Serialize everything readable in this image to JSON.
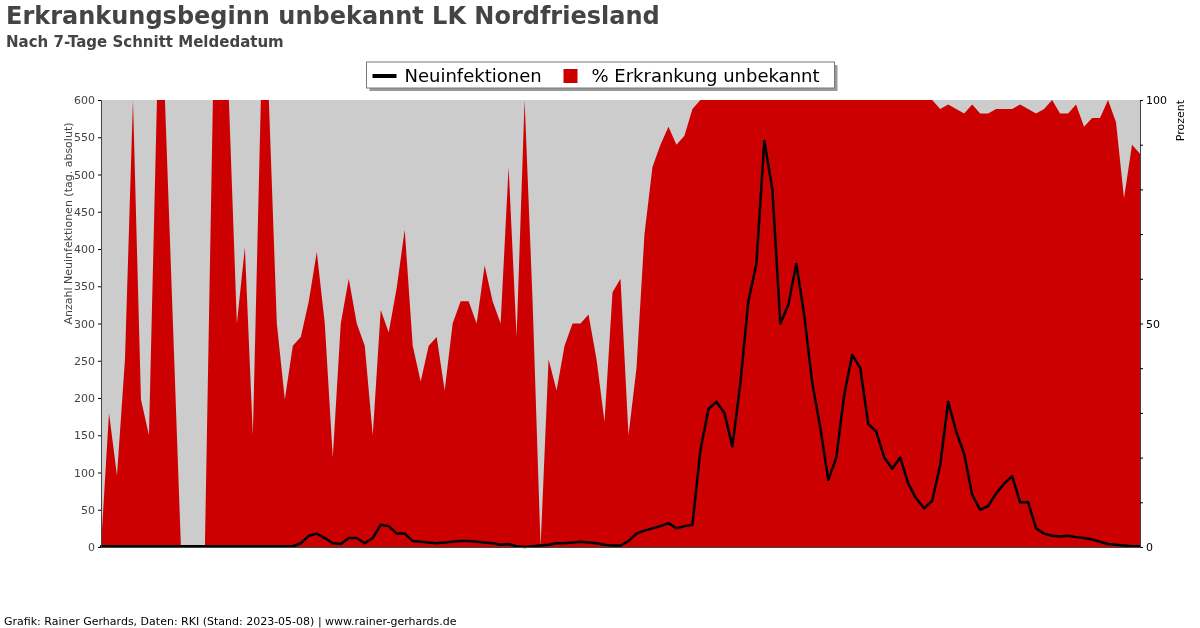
{
  "chart_data": {
    "type": "line",
    "title": "Erkrankungsbeginn unbekannt LK Nordfriesland",
    "subtitle": "Nach 7-Tage Schnitt Meldedatum",
    "ylabel": "Anzahl Neuinfektionen (tag. absolut)",
    "y2label": "Prozent",
    "annotations": [
      "Grafik: Rainer Gerhards, Daten: RKI (Stand: 2023-05-08) | www.rainer-gerhards.de"
    ],
    "categories": [
      null,
      null,
      null,
      null,
      null,
      null,
      null,
      null,
      null,
      null,
      null,
      null,
      null,
      null,
      null,
      null,
      null,
      null,
      null,
      null,
      null,
      null,
      null,
      null,
      null,
      null,
      null,
      null,
      null,
      null,
      null,
      null,
      null,
      null,
      null,
      null,
      null,
      null,
      null,
      null,
      null,
      null,
      null,
      null,
      null,
      null,
      null,
      null,
      null,
      null,
      null,
      null,
      null,
      null,
      null,
      null,
      null,
      null,
      null,
      null,
      null,
      null,
      null,
      null,
      null,
      null,
      null,
      null,
      null,
      null,
      null,
      null,
      null,
      null,
      null,
      null,
      null,
      null,
      null,
      null,
      null,
      null,
      null,
      null,
      null,
      null,
      null,
      null,
      null,
      null,
      null,
      null,
      null,
      null,
      null,
      null,
      null,
      null,
      null,
      null,
      null,
      null,
      null,
      null,
      null,
      null,
      null,
      null,
      null,
      null,
      null,
      null,
      null,
      null,
      null,
      null,
      null,
      null,
      null,
      null,
      null,
      null,
      null,
      null,
      null,
      null,
      null,
      null,
      null,
      null,
      null
    ],
    "series": [
      {
        "name": "Neuinfektionen",
        "type": "line",
        "color": "#000000",
        "values": [
          1,
          1,
          1,
          1,
          1,
          1,
          1,
          1,
          1,
          1,
          1,
          1,
          1,
          1,
          1,
          1,
          1,
          1,
          1,
          1,
          1,
          1,
          1,
          1,
          1,
          5,
          15,
          18,
          12,
          5,
          4,
          12,
          12,
          5,
          12,
          30,
          28,
          18,
          18,
          8,
          7,
          6,
          5,
          6,
          7,
          8,
          8,
          7,
          6,
          5,
          3,
          4,
          1,
          0,
          1,
          2,
          3,
          5,
          5,
          6,
          7,
          6,
          5,
          3,
          2,
          2,
          8,
          18,
          22,
          25,
          28,
          32,
          25,
          28,
          30,
          130,
          185,
          195,
          180,
          135,
          220,
          330,
          380,
          545,
          480,
          300,
          325,
          380,
          310,
          220,
          160,
          90,
          120,
          205,
          258,
          240,
          165,
          155,
          120,
          105,
          120,
          85,
          65,
          52,
          62,
          110,
          195,
          155,
          125,
          70,
          50,
          55,
          72,
          85,
          95,
          60,
          60,
          25,
          18,
          15,
          14,
          15,
          13,
          12,
          10,
          7,
          4,
          3,
          2,
          1,
          1
        ]
      },
      {
        "name": "% Erkrankung unbekannt",
        "type": "area",
        "axis": "y2",
        "color": "#cc0000",
        "values": [
          0,
          30,
          16,
          42,
          100,
          33,
          25,
          100,
          100,
          50,
          0,
          0,
          0,
          0,
          100,
          100,
          100,
          50,
          67,
          25,
          100,
          100,
          50,
          33,
          45,
          47,
          55,
          66,
          50,
          20,
          50,
          60,
          50,
          45,
          25,
          53,
          48,
          58,
          71,
          45,
          37,
          45,
          47,
          35,
          50,
          55,
          55,
          50,
          63,
          55,
          50,
          85,
          47,
          100,
          55,
          0,
          42,
          35,
          45,
          50,
          50,
          52,
          42,
          28,
          57,
          60,
          25,
          40,
          70,
          85,
          90,
          94,
          90,
          92,
          98,
          100,
          100,
          100,
          100,
          100,
          100,
          100,
          100,
          100,
          100,
          100,
          100,
          100,
          100,
          100,
          100,
          100,
          100,
          100,
          100,
          100,
          100,
          100,
          100,
          100,
          100,
          100,
          100,
          100,
          100,
          98,
          99,
          98,
          97,
          99,
          97,
          97,
          98,
          98,
          98,
          99,
          98,
          97,
          98,
          100,
          97,
          97,
          99,
          94,
          96,
          96,
          100,
          95,
          78,
          90,
          88
        ]
      }
    ],
    "ylim": [
      0,
      600
    ],
    "yticks": [
      0,
      50,
      100,
      150,
      200,
      250,
      300,
      350,
      400,
      450,
      500,
      550,
      600
    ],
    "y2lim": [
      0,
      100
    ],
    "y2ticks": [
      0,
      {
        "value": 10,
        "label": null
      },
      {
        "value": 20,
        "label": null
      },
      {
        "value": 30,
        "label": null
      },
      {
        "value": 40,
        "label": null
      },
      50,
      {
        "value": 60,
        "label": null
      },
      {
        "value": 70,
        "label": null
      },
      {
        "value": 80,
        "label": null
      },
      {
        "value": 90,
        "label": null
      },
      100
    ],
    "legend": "top",
    "grid": false
  }
}
